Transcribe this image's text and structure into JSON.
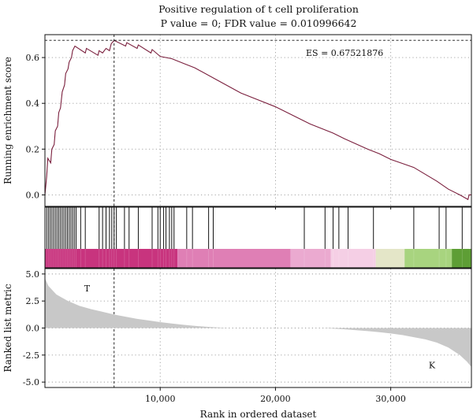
{
  "chart_data": {
    "type": "line",
    "title": "Positive regulation of t cell proliferation",
    "subtitle": "P value = 0; FDR value = 0.010996642",
    "xlabel": "Rank in ordered dataset",
    "es_label": "ES = 0.67521876",
    "es_value": 0.67521876,
    "peak_rank": 6000,
    "xlim": [
      0,
      37000
    ],
    "x_ticks": [
      10000,
      20000,
      30000
    ],
    "x_tick_labels": [
      "10,000",
      "20,000",
      "30,000"
    ],
    "enrichment": {
      "ylabel": "Running enrichment score",
      "ylim": [
        -0.05,
        0.7
      ],
      "y_ticks": [
        0.0,
        0.2,
        0.4,
        0.6
      ],
      "y_tick_labels": [
        "0.0",
        "0.2",
        "0.4",
        "0.6"
      ],
      "color": "#7a1f3d",
      "points": [
        [
          0,
          0.0
        ],
        [
          150,
          0.08
        ],
        [
          250,
          0.16
        ],
        [
          500,
          0.14
        ],
        [
          600,
          0.2
        ],
        [
          800,
          0.22
        ],
        [
          900,
          0.28
        ],
        [
          1100,
          0.3
        ],
        [
          1200,
          0.36
        ],
        [
          1350,
          0.38
        ],
        [
          1500,
          0.45
        ],
        [
          1700,
          0.48
        ],
        [
          1800,
          0.53
        ],
        [
          2000,
          0.55
        ],
        [
          2100,
          0.58
        ],
        [
          2300,
          0.6
        ],
        [
          2400,
          0.63
        ],
        [
          2600,
          0.65
        ],
        [
          3500,
          0.62
        ],
        [
          3600,
          0.64
        ],
        [
          4600,
          0.61
        ],
        [
          4700,
          0.63
        ],
        [
          5000,
          0.62
        ],
        [
          5300,
          0.64
        ],
        [
          5600,
          0.63
        ],
        [
          5750,
          0.66
        ],
        [
          6000,
          0.675
        ],
        [
          7000,
          0.65
        ],
        [
          7100,
          0.665
        ],
        [
          8000,
          0.64
        ],
        [
          8100,
          0.655
        ],
        [
          9200,
          0.62
        ],
        [
          9300,
          0.635
        ],
        [
          10000,
          0.605
        ],
        [
          11000,
          0.595
        ],
        [
          12000,
          0.575
        ],
        [
          13000,
          0.555
        ],
        [
          15000,
          0.5
        ],
        [
          17000,
          0.445
        ],
        [
          20000,
          0.385
        ],
        [
          23000,
          0.31
        ],
        [
          25000,
          0.27
        ],
        [
          26000,
          0.245
        ],
        [
          28000,
          0.2
        ],
        [
          29000,
          0.18
        ],
        [
          30000,
          0.155
        ],
        [
          32000,
          0.12
        ],
        [
          33000,
          0.09
        ],
        [
          34000,
          0.06
        ],
        [
          35000,
          0.025
        ],
        [
          36000,
          0.0
        ],
        [
          36700,
          -0.02
        ],
        [
          36800,
          0.0
        ],
        [
          37000,
          0.0
        ]
      ]
    },
    "hits": [
      150,
      300,
      450,
      600,
      750,
      900,
      1050,
      1200,
      1350,
      1500,
      1650,
      1800,
      1950,
      2100,
      2250,
      2400,
      2550,
      2700,
      3100,
      3500,
      4700,
      5000,
      5300,
      5600,
      5800,
      6000,
      6200,
      6900,
      7300,
      8100,
      9300,
      9800,
      10000,
      10300,
      10500,
      10800,
      11000,
      11200,
      12300,
      12800,
      14200,
      14600,
      22500,
      24300,
      25000,
      25500,
      26300,
      28500,
      32000,
      34200,
      34800,
      36200
    ],
    "color_band": [
      {
        "from": 0,
        "to": 11500,
        "color": "#c8347e"
      },
      {
        "from": 11500,
        "to": 21300,
        "color": "#df7fb5"
      },
      {
        "from": 21300,
        "to": 24800,
        "color": "#ebaad0"
      },
      {
        "from": 24800,
        "to": 28700,
        "color": "#f5cfe5"
      },
      {
        "from": 28700,
        "to": 31200,
        "color": "#e4e6c8"
      },
      {
        "from": 31200,
        "to": 35300,
        "color": "#a8d47f"
      },
      {
        "from": 35300,
        "to": 37000,
        "color": "#5e9e35"
      }
    ],
    "ranked_metric": {
      "ylabel": "Ranked list metric",
      "ylim": [
        -5.5,
        5.5
      ],
      "y_ticks": [
        5.0,
        2.5,
        0.0,
        -2.5,
        -5.0
      ],
      "y_tick_labels": [
        "5.0",
        "2.5",
        "0.0",
        "-2.5",
        "-5.0"
      ],
      "fill_color": "#c8c8c8",
      "points": [
        [
          0,
          4.6
        ],
        [
          300,
          3.9
        ],
        [
          1000,
          3.1
        ],
        [
          2000,
          2.5
        ],
        [
          3000,
          2.05
        ],
        [
          4000,
          1.75
        ],
        [
          5000,
          1.5
        ],
        [
          6000,
          1.25
        ],
        [
          7000,
          1.05
        ],
        [
          8000,
          0.85
        ],
        [
          9000,
          0.7
        ],
        [
          10000,
          0.55
        ],
        [
          11000,
          0.42
        ],
        [
          12000,
          0.3
        ],
        [
          13000,
          0.2
        ],
        [
          14000,
          0.12
        ],
        [
          15000,
          0.05
        ],
        [
          16000,
          0.0
        ],
        [
          24000,
          0.0
        ],
        [
          25000,
          -0.05
        ],
        [
          26000,
          -0.12
        ],
        [
          27000,
          -0.2
        ],
        [
          28000,
          -0.28
        ],
        [
          29000,
          -0.38
        ],
        [
          30000,
          -0.5
        ],
        [
          31000,
          -0.65
        ],
        [
          32000,
          -0.85
        ],
        [
          33000,
          -1.05
        ],
        [
          34000,
          -1.35
        ],
        [
          35000,
          -1.8
        ],
        [
          36000,
          -2.5
        ],
        [
          36600,
          -3.1
        ],
        [
          37000,
          -3.6
        ]
      ],
      "label_pos": "T",
      "label_neg": "K",
      "label_pos_color": "#7a1f3d",
      "label_neg_color": "#2e6b1e"
    }
  }
}
